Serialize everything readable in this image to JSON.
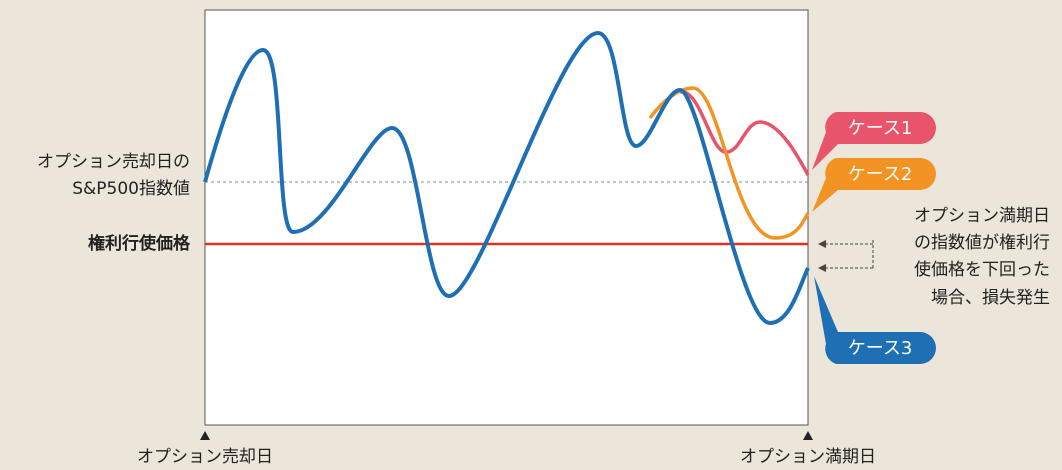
{
  "left_labels": {
    "index_at_sale": [
      "オプション売却日の",
      "S&P500指数値"
    ],
    "strike_price": "権利行使価格"
  },
  "cases": [
    "ケース1",
    "ケース2",
    "ケース3"
  ],
  "note": [
    "オプション満期日",
    "の指数値が権利行",
    "使価格を下回った",
    "場合、損失発生"
  ],
  "x_labels": {
    "start": "オプション売却日",
    "end": "オプション満期日"
  }
}
